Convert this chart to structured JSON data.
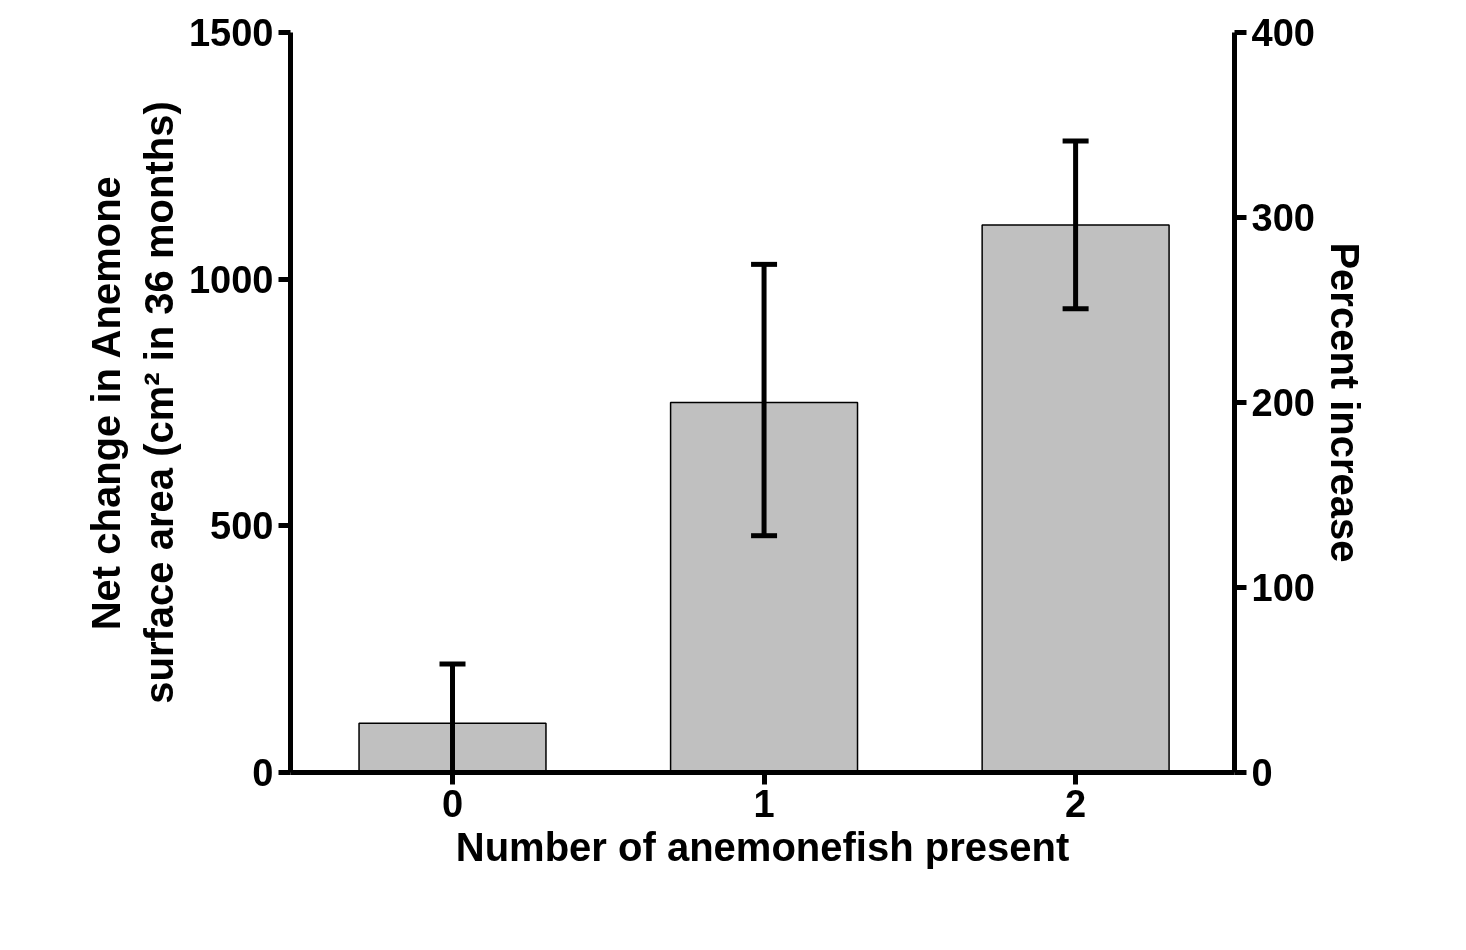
{
  "chart_data": {
    "type": "bar",
    "xlabel": "Number of anemonefish present",
    "ylabel": "Net change in Anemone\nsurface area (cm² in 36 months)",
    "y2label": "Percent increase",
    "categories": [
      "0",
      "1",
      "2"
    ],
    "values": [
      100,
      750,
      1110
    ],
    "errors": [
      [
        0,
        220
      ],
      [
        480,
        1030
      ],
      [
        940,
        1280
      ]
    ],
    "color": "#c0c0c0",
    "ylim": [
      0,
      1500
    ],
    "yticks": [
      0,
      500,
      1000,
      1500
    ],
    "y2lim": [
      0,
      400
    ],
    "y2ticks": [
      0,
      100,
      200,
      300,
      400
    ],
    "grid": false
  }
}
